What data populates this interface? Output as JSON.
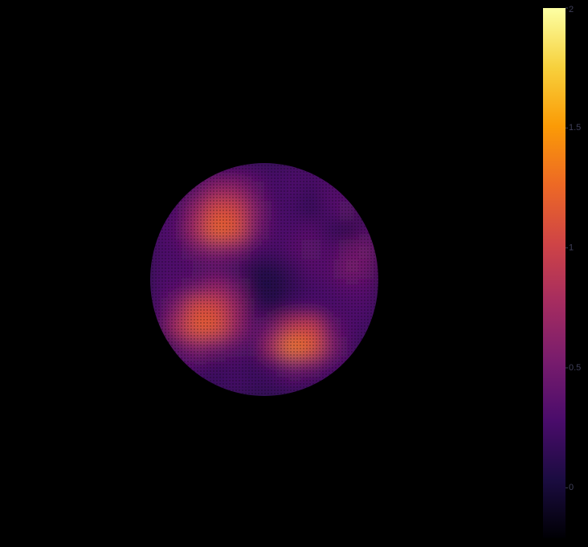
{
  "chart_data": {
    "type": "heatmap",
    "colorscale": [
      "#000004",
      "#1b0c41",
      "#4a0c6b",
      "#781c6d",
      "#a52c60",
      "#cf4446",
      "#ed6925",
      "#fb9b06",
      "#f7d13d",
      "#fcffa4"
    ],
    "zlim": [
      -0.21,
      2
    ],
    "zticks": [
      0,
      0.5,
      1,
      1.5,
      2
    ],
    "z": [
      [
        null,
        null,
        0.3,
        0.3,
        0.35,
        0.3,
        0.25,
        0.3,
        0.3,
        0.3,
        null,
        null
      ],
      [
        null,
        0.25,
        0.4,
        0.7,
        0.7,
        0.45,
        0.25,
        0.3,
        0.2,
        0.35,
        0.3,
        null
      ],
      [
        0.25,
        0.3,
        0.7,
        1.1,
        1.05,
        0.6,
        0.3,
        0.25,
        0.15,
        0.3,
        0.4,
        null
      ],
      [
        0.3,
        0.35,
        0.8,
        1.25,
        1.15,
        0.55,
        0.3,
        0.3,
        0.35,
        0.2,
        0.1,
        0.35
      ],
      [
        0.3,
        0.3,
        0.5,
        0.6,
        0.55,
        0.3,
        0.25,
        0.35,
        0.4,
        0.3,
        0.45,
        0.5
      ],
      [
        0.3,
        0.3,
        0.3,
        0.35,
        0.25,
        0.1,
        0.1,
        0.2,
        0.35,
        0.35,
        0.55,
        0.45
      ],
      [
        0.3,
        0.35,
        0.5,
        0.7,
        0.5,
        0.1,
        0.05,
        0.15,
        0.25,
        0.3,
        0.35,
        0.35
      ],
      [
        0.3,
        0.6,
        1.1,
        1.05,
        0.7,
        0.2,
        0.1,
        0.25,
        0.3,
        0.25,
        0.3,
        0.3
      ],
      [
        0.3,
        0.8,
        1.2,
        1.15,
        0.7,
        0.35,
        0.5,
        0.9,
        1.0,
        0.45,
        0.3,
        0.25
      ],
      [
        null,
        0.4,
        0.6,
        0.5,
        0.4,
        0.3,
        0.8,
        1.35,
        1.2,
        0.6,
        0.3,
        null
      ],
      [
        null,
        0.3,
        0.3,
        0.2,
        0.25,
        0.2,
        0.3,
        0.5,
        0.45,
        0.3,
        0.25,
        null
      ],
      [
        null,
        null,
        0.2,
        0.2,
        0.25,
        0.2,
        0.2,
        0.25,
        0.2,
        0.2,
        null,
        null
      ]
    ]
  }
}
